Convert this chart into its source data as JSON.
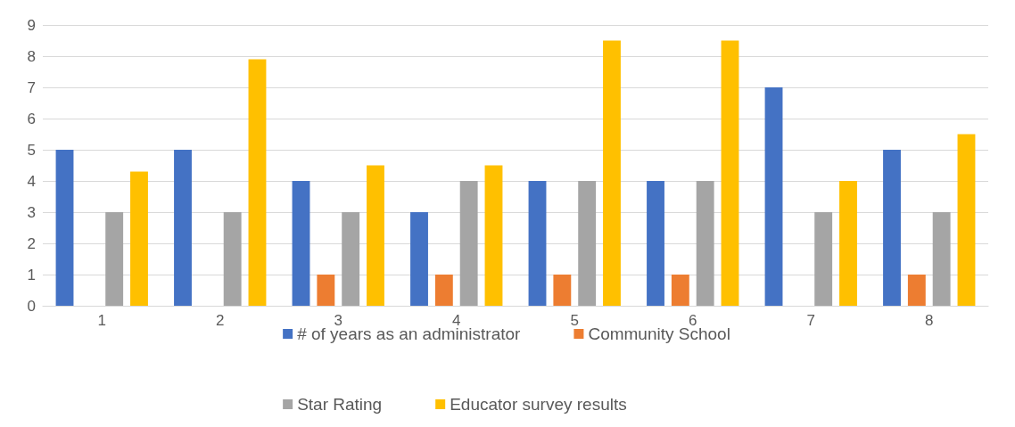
{
  "chart_data": {
    "type": "bar",
    "categories": [
      "1",
      "2",
      "3",
      "4",
      "5",
      "6",
      "7",
      "8"
    ],
    "series": [
      {
        "name": "# of years as an administrator",
        "color": "#4472c4",
        "values": [
          5,
          5,
          4,
          3,
          4,
          4,
          7,
          5
        ]
      },
      {
        "name": "Community School",
        "color": "#ed7d31",
        "values": [
          0,
          0,
          1,
          1,
          1,
          1,
          0,
          1
        ]
      },
      {
        "name": "Star Rating",
        "color": "#a5a5a5",
        "values": [
          3,
          3,
          3,
          4,
          4,
          4,
          3,
          3
        ]
      },
      {
        "name": "Educator survey results",
        "color": "#ffc000",
        "values": [
          4.3,
          7.9,
          4.5,
          4.5,
          8.5,
          8.5,
          4,
          5.5
        ]
      }
    ],
    "ylim": [
      0,
      9
    ],
    "yticks": [
      0,
      1,
      2,
      3,
      4,
      5,
      6,
      7,
      8,
      9
    ],
    "grid": "y",
    "legend": "bottom"
  }
}
